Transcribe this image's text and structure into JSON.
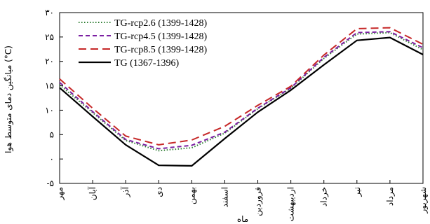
{
  "chart_data": {
    "type": "line",
    "xlabel": "ماه",
    "ylabel": "میانگین دمای متوسط هوا (°C)",
    "categories": [
      "مهر",
      "آبان",
      "آذر",
      "دی",
      "بهمن",
      "اسفند",
      "فروردین",
      "اردیبهشت",
      "خرداد",
      "تیر",
      "مرداد",
      "شهریور"
    ],
    "ylim": [
      -5,
      30
    ],
    "yticks": [
      -5,
      0,
      5,
      10,
      15,
      20,
      25,
      30
    ],
    "ytick_labels": [
      "-۵",
      "۰",
      "۵",
      "۱۰",
      "۱۵",
      "۲۰",
      "۲۵",
      "۳۰"
    ],
    "grid": false,
    "legend_position": "top-left",
    "series": [
      {
        "name": "TG-rcp2.6 (1399-1428)",
        "color": "#2e7d32",
        "dash": "dotted",
        "values": [
          15.2,
          9.5,
          3.8,
          1.7,
          2.3,
          5.3,
          10.3,
          14.5,
          20.6,
          25.6,
          25.9,
          22.4
        ]
      },
      {
        "name": "TG-rcp4.5 (1399-1428)",
        "color": "#7b1fa2",
        "dash": "dashed",
        "values": [
          15.7,
          9.7,
          4.0,
          2.1,
          2.8,
          5.5,
          10.4,
          14.6,
          20.8,
          25.9,
          26.1,
          22.8
        ]
      },
      {
        "name": "TG-rcp8.5 (1399-1428)",
        "color": "#c62828",
        "dash": "longdash",
        "values": [
          16.4,
          10.4,
          4.7,
          2.9,
          3.9,
          6.7,
          11.0,
          14.9,
          21.3,
          26.7,
          26.9,
          23.5
        ]
      },
      {
        "name": "TG (1367-1396)",
        "color": "#000000",
        "dash": "solid",
        "values": [
          14.6,
          8.7,
          2.9,
          -1.3,
          -1.4,
          4.2,
          9.6,
          14.1,
          19.3,
          24.3,
          24.9,
          21.4
        ]
      }
    ]
  }
}
